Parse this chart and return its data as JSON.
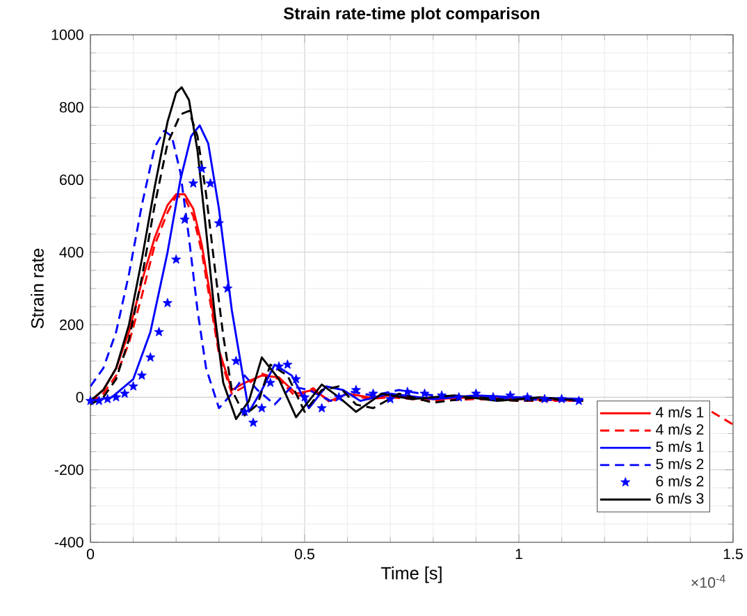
{
  "chart_data": {
    "type": "line",
    "title": "Strain rate-time plot comparison",
    "xlabel": "Time [s]",
    "ylabel": "Strain rate",
    "annotations": [
      "×10$^{-4}$"
    ],
    "xlim": [
      0,
      1.5
    ],
    "ylim": [
      -400,
      1000
    ],
    "xticks": [
      0,
      0.5,
      1,
      1.5
    ],
    "yticks": [
      -400,
      -200,
      0,
      200,
      400,
      600,
      800,
      1000
    ],
    "grid": true,
    "legend": "bottom right",
    "series": [
      {
        "name": "4 m/s 1",
        "color": "#ff0000",
        "line_style": "solid",
        "x": [
          0,
          0.03,
          0.06,
          0.09,
          0.12,
          0.15,
          0.18,
          0.2,
          0.22,
          0.24,
          0.26,
          0.28,
          0.3,
          0.33,
          0.36,
          0.4,
          0.44,
          0.48,
          0.52,
          0.56,
          0.6,
          0.65,
          0.7,
          0.8,
          0.9,
          1.0,
          1.15
        ],
        "values": [
          -10,
          20,
          80,
          180,
          320,
          440,
          530,
          560,
          560,
          520,
          420,
          280,
          130,
          20,
          40,
          60,
          55,
          10,
          20,
          -10,
          10,
          0,
          5,
          -5,
          0,
          -5,
          -10
        ]
      },
      {
        "name": "4 m/s 2",
        "color": "#ff0000",
        "line_style": "dashed",
        "x": [
          0,
          0.03,
          0.06,
          0.09,
          0.12,
          0.15,
          0.18,
          0.2,
          0.22,
          0.24,
          0.26,
          0.28,
          0.3,
          0.33,
          0.36,
          0.4,
          0.44,
          0.48,
          0.52,
          0.56,
          0.6,
          0.65,
          0.7,
          0.8,
          0.9,
          1.0,
          1.15,
          1.3,
          1.45,
          1.5
        ],
        "values": [
          -15,
          10,
          60,
          150,
          280,
          420,
          510,
          555,
          550,
          500,
          400,
          260,
          120,
          10,
          30,
          65,
          50,
          0,
          25,
          -15,
          10,
          -5,
          0,
          -10,
          -5,
          -10,
          -10,
          null,
          -40,
          -75
        ]
      },
      {
        "name": "5 m/s 1",
        "color": "#0000ff",
        "line_style": "solid",
        "x": [
          0,
          0.05,
          0.1,
          0.14,
          0.18,
          0.21,
          0.235,
          0.255,
          0.275,
          0.3,
          0.33,
          0.37,
          0.4,
          0.43,
          0.47,
          0.51,
          0.55,
          0.59,
          0.63,
          0.7,
          0.8,
          0.9,
          1.0,
          1.15
        ],
        "values": [
          -10,
          0,
          50,
          180,
          400,
          600,
          720,
          750,
          700,
          520,
          240,
          -40,
          20,
          90,
          60,
          -30,
          30,
          20,
          -10,
          10,
          -5,
          5,
          0,
          -5
        ]
      },
      {
        "name": "5 m/s 2",
        "color": "#0000ff",
        "line_style": "dashed",
        "x": [
          0,
          0.03,
          0.06,
          0.09,
          0.12,
          0.15,
          0.172,
          0.19,
          0.21,
          0.23,
          0.25,
          0.27,
          0.3,
          0.33,
          0.36,
          0.39,
          0.43,
          0.47,
          0.51,
          0.56,
          0.61,
          0.66,
          0.72,
          0.8,
          0.9,
          1.0,
          1.15
        ],
        "values": [
          30,
          80,
          180,
          340,
          530,
          690,
          735,
          720,
          620,
          440,
          240,
          80,
          -30,
          10,
          60,
          20,
          -20,
          30,
          20,
          -10,
          15,
          5,
          20,
          5,
          0,
          -5,
          -10
        ]
      },
      {
        "name": "6 m/s 2",
        "color": "#0000ff",
        "type": "scatter",
        "marker": "star",
        "x": [
          0,
          0.02,
          0.04,
          0.06,
          0.08,
          0.1,
          0.12,
          0.14,
          0.16,
          0.18,
          0.2,
          0.22,
          0.24,
          0.26,
          0.28,
          0.3,
          0.32,
          0.34,
          0.36,
          0.38,
          0.4,
          0.42,
          0.44,
          0.46,
          0.48,
          0.5,
          0.54,
          0.58,
          0.62,
          0.66,
          0.7,
          0.74,
          0.78,
          0.82,
          0.86,
          0.9,
          0.94,
          0.98,
          1.02,
          1.06,
          1.1,
          1.14
        ],
        "values": [
          -10,
          -10,
          -5,
          0,
          10,
          30,
          60,
          110,
          180,
          260,
          380,
          490,
          590,
          630,
          590,
          480,
          300,
          100,
          -40,
          -70,
          -30,
          40,
          85,
          90,
          50,
          0,
          -30,
          0,
          20,
          10,
          -5,
          15,
          10,
          5,
          0,
          10,
          0,
          5,
          0,
          -5,
          -5,
          -10
        ]
      },
      {
        "color": "#000000",
        "line_style": "dashed",
        "x": [
          0,
          0.03,
          0.06,
          0.09,
          0.12,
          0.15,
          0.18,
          0.21,
          0.23,
          0.25,
          0.27,
          0.29,
          0.31,
          0.33,
          0.36,
          0.39,
          0.42,
          0.46,
          0.5,
          0.54,
          0.58,
          0.62,
          0.66,
          0.72,
          0.8,
          0.9,
          1.0,
          1.1
        ],
        "values": [
          -20,
          0,
          50,
          160,
          330,
          530,
          700,
          780,
          790,
          720,
          560,
          360,
          170,
          20,
          -50,
          -20,
          90,
          60,
          -40,
          20,
          30,
          -20,
          -30,
          10,
          -15,
          0,
          -10,
          -5
        ]
      },
      {
        "name": "6 m/s 3",
        "color": "#000000",
        "line_style": "solid",
        "x": [
          0,
          0.03,
          0.06,
          0.09,
          0.12,
          0.15,
          0.18,
          0.2,
          0.213,
          0.23,
          0.25,
          0.27,
          0.29,
          0.31,
          0.34,
          0.37,
          0.4,
          0.44,
          0.48,
          0.51,
          0.54,
          0.58,
          0.62,
          0.68,
          0.75,
          0.85,
          0.95,
          1.05,
          1.15
        ],
        "values": [
          -10,
          20,
          80,
          200,
          380,
          580,
          760,
          840,
          855,
          820,
          680,
          460,
          230,
          40,
          -60,
          -10,
          110,
          50,
          -55,
          -10,
          35,
          0,
          -40,
          10,
          -5,
          5,
          -10,
          0,
          -10
        ]
      }
    ]
  }
}
